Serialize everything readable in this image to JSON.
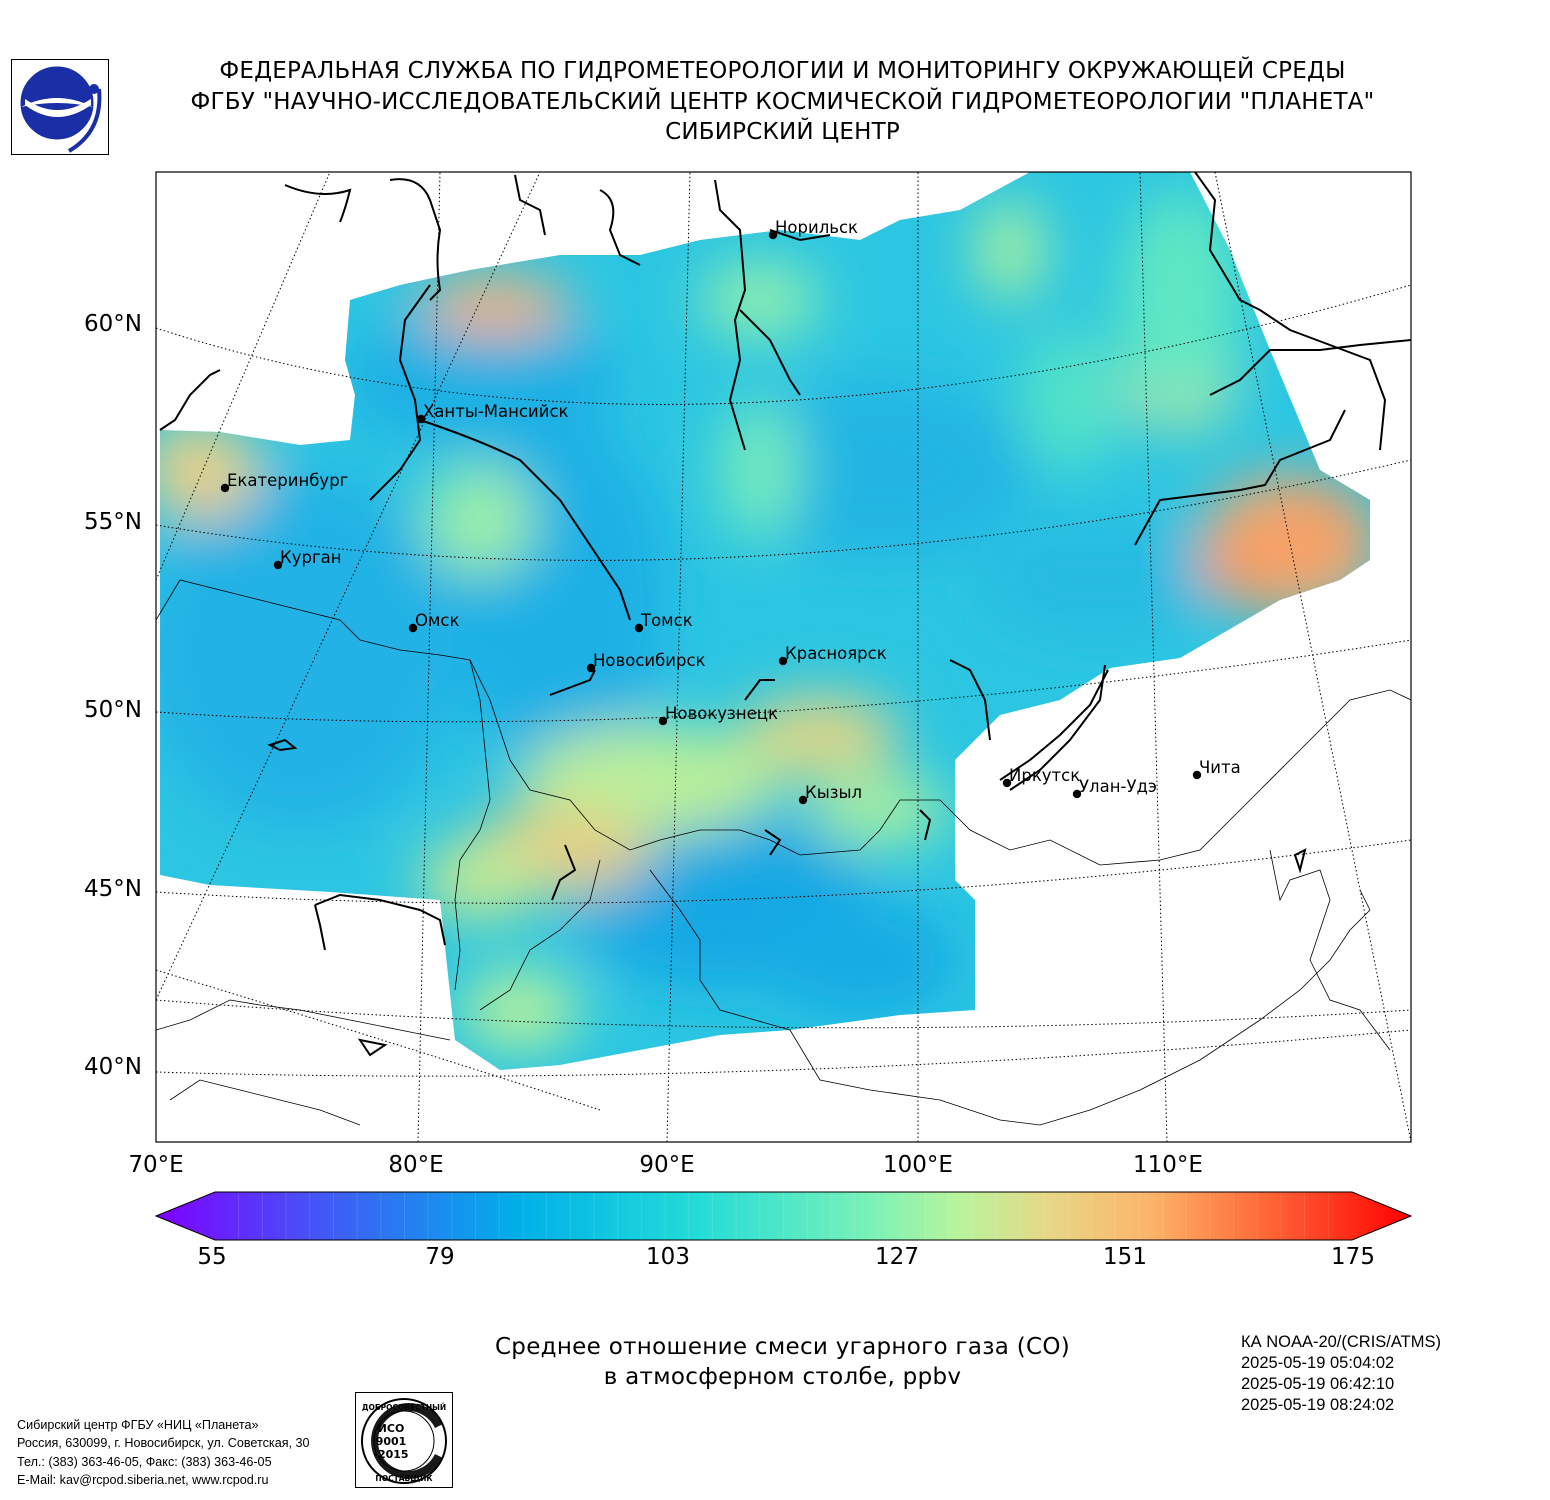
{
  "header": {
    "line1": "ФЕДЕРАЛЬНАЯ СЛУЖБА ПО ГИДРОМЕТЕОРОЛОГИИ И МОНИТОРИНГУ ОКРУЖАЮЩЕЙ СРЕДЫ",
    "line2": "ФГБУ \"НАУЧНО-ИССЛЕДОВАТЕЛЬСКИЙ ЦЕНТР КОСМИЧЕСКОЙ ГИДРОМЕТЕОРОЛОГИИ \"ПЛАНЕТА\"",
    "line3": "СИБИРСКИЙ ЦЕНТР"
  },
  "logo_icon": "planeta-logo-icon",
  "map": {
    "lat_labels": [
      "60°N",
      "55°N",
      "50°N",
      "45°N",
      "40°N"
    ],
    "lon_labels": [
      "70°E",
      "80°E",
      "90°E",
      "100°E",
      "110°E"
    ],
    "cities": [
      {
        "name": "Норильск"
      },
      {
        "name": "Ханты-Мансийск"
      },
      {
        "name": "Екатеринбург"
      },
      {
        "name": "Курган"
      },
      {
        "name": "Омск"
      },
      {
        "name": "Томск"
      },
      {
        "name": "Новосибирск"
      },
      {
        "name": "Красноярск"
      },
      {
        "name": "Новокузнецк"
      },
      {
        "name": "Кызыл"
      },
      {
        "name": "Иркутск"
      },
      {
        "name": "Улан-Удэ"
      },
      {
        "name": "Чита"
      }
    ]
  },
  "colorbar": {
    "ticks": [
      "55",
      "79",
      "103",
      "127",
      "151",
      "175"
    ],
    "min": 55,
    "max": 175,
    "colors": [
      "#7f00ff",
      "#3f5cf7",
      "#00b0e8",
      "#3ff1d3",
      "#a3f7a0",
      "#fdb56a",
      "#ff4d28",
      "#ff0000"
    ]
  },
  "title": {
    "line1": "Среднее отношение смеси угарного газа (CO)",
    "line2": "в атмосферном столбе, ppbv"
  },
  "info": {
    "satellite": "КА NOAA-20/(CRIS/ATMS)",
    "times": [
      "2025-05-19 05:04:02",
      "2025-05-19 06:42:10",
      "2025-05-19 08:24:02"
    ]
  },
  "footer": {
    "lines": [
      "Сибирский центр ФГБУ «НИЦ «Планета»",
      "Россия, 630099, г. Новосибирск, ул. Советская, 30",
      "Тел.: (383) 363-46-05, Факс: (383) 363-46-05",
      "E-Mail: kav@rcpod.siberia.net, www.rcpod.ru"
    ]
  },
  "iso_badge": {
    "top": "ДОБРОСОВЕСТНЫЙ",
    "l1": "ИСО",
    "l2": "9001",
    "l3": "-2015",
    "bottom": "ПОСТАВЩИК"
  }
}
